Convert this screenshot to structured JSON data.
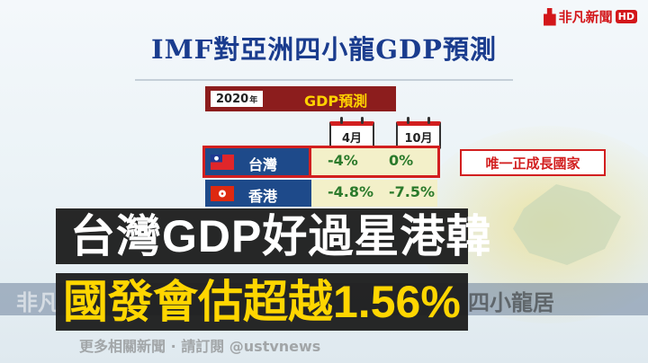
{
  "broadcaster": {
    "name": "非凡新聞",
    "hd": "HD"
  },
  "title": "IMF對亞洲四小龍GDP預測",
  "table": {
    "year": "2020",
    "year_suffix": "年",
    "header": "GDP預測",
    "month_apr": "4月",
    "month_oct": "10月",
    "rows": [
      {
        "country": "台灣",
        "apr": "-4%",
        "oct": "0%",
        "tag": "唯一正成長國家"
      },
      {
        "country": "香港",
        "apr": "-4.8%",
        "oct": "-7.5%"
      }
    ]
  },
  "subtitles": {
    "line1": "台灣GDP好過星港韓",
    "line2": "國發會估超越1.56%"
  },
  "ticker": {
    "left": "非凡",
    "right": "四小龍居"
  },
  "footer": "更多相關新聞 · 請訂閱 @ustvnews"
}
